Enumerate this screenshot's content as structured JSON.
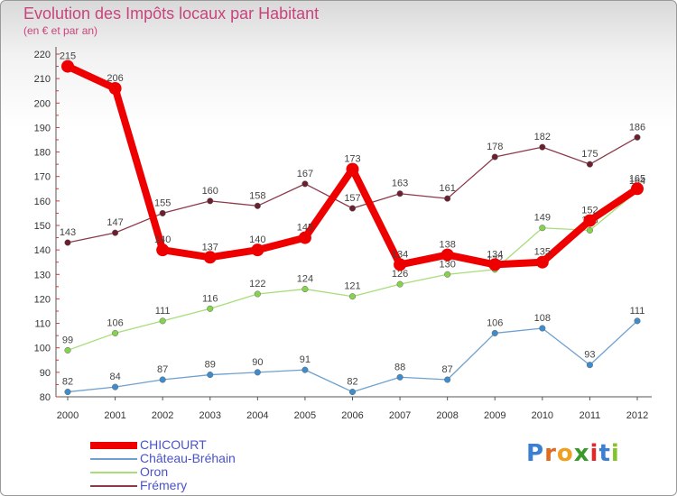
{
  "header": {
    "title": "Evolution des Impôts locaux par Habitant",
    "subtitle": "(en € et par an)"
  },
  "chart_data": {
    "type": "line",
    "title": "Evolution des Impôts locaux par Habitant",
    "subtitle": "(en € et par an)",
    "x": [
      "2000",
      "2001",
      "2002",
      "2003",
      "2004",
      "2005",
      "2006",
      "2007",
      "2008",
      "2009",
      "2010",
      "2011",
      "2012"
    ],
    "ylim": [
      80,
      220
    ],
    "yticks": [
      "80",
      "90",
      "100",
      "110",
      "120",
      "130",
      "140",
      "150",
      "160",
      "170",
      "180",
      "190",
      "200",
      "210",
      "220"
    ],
    "grid": false,
    "series": [
      {
        "name": "CHICOURT",
        "color": "#ee0000",
        "emphasis": true,
        "values": [
          215,
          206,
          140,
          137,
          140,
          145,
          173,
          134,
          138,
          134,
          135,
          152,
          165
        ]
      },
      {
        "name": "Château-Bréhain",
        "color": "#6fa1d0",
        "marker": "#3f8ccc",
        "values": [
          82,
          84,
          87,
          89,
          90,
          91,
          82,
          88,
          87,
          106,
          108,
          93,
          111
        ]
      },
      {
        "name": "Oron",
        "color": "#a8dd7a",
        "marker": "#86d24e",
        "values": [
          99,
          106,
          111,
          116,
          122,
          124,
          121,
          126,
          130,
          132,
          149,
          148,
          164
        ]
      },
      {
        "name": "Frémery",
        "color": "#8c3a4a",
        "marker": "#6b2030",
        "values": [
          143,
          147,
          155,
          160,
          158,
          167,
          157,
          163,
          161,
          178,
          182,
          175,
          186
        ]
      }
    ],
    "legend_position": "bottom-left"
  },
  "logo": {
    "letters": [
      "P",
      "r",
      "o",
      "x",
      "i",
      "t",
      "i"
    ],
    "colors": [
      "#3a7fd0",
      "#e06a1e",
      "#f0a020",
      "#3a9a2a",
      "#e02a2a",
      "#3a7fd0",
      "#86c22e"
    ]
  }
}
